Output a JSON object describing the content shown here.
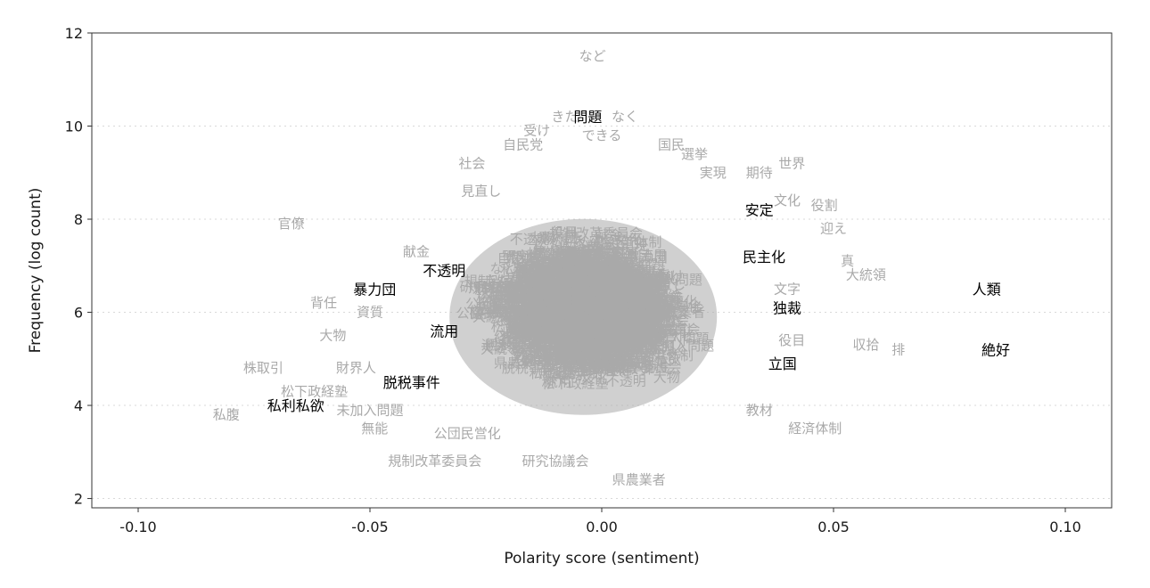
{
  "chart_data": {
    "type": "scatter",
    "xlabel": "Polarity score (sentiment)",
    "ylabel": "Frequency (log count)",
    "xlim": [
      -0.11,
      0.11
    ],
    "ylim": [
      1.8,
      12
    ],
    "xticks": [
      -0.1,
      -0.05,
      0.0,
      0.05,
      0.1
    ],
    "xtick_labels": [
      "-0.10",
      "-0.05",
      "0.00",
      "0.05",
      "0.10"
    ],
    "yticks": [
      2,
      4,
      6,
      8,
      10,
      12
    ],
    "ytick_labels": [
      "2",
      "4",
      "6",
      "8",
      "10",
      "12"
    ],
    "grid": "horizontal dotted",
    "colors": {
      "background_words": "#a9a9a9",
      "highlighted_words": "#000000",
      "grid": "#d9d9d9",
      "frame": "#333333"
    },
    "highlighted_words": [
      {
        "word": "問題",
        "x": -0.003,
        "y": 10.2
      },
      {
        "word": "安定",
        "x": 0.034,
        "y": 8.2
      },
      {
        "word": "民主化",
        "x": 0.035,
        "y": 7.2
      },
      {
        "word": "不透明",
        "x": -0.034,
        "y": 6.9
      },
      {
        "word": "暴力団",
        "x": -0.049,
        "y": 6.5
      },
      {
        "word": "人類",
        "x": 0.083,
        "y": 6.5
      },
      {
        "word": "独裁",
        "x": 0.04,
        "y": 6.1
      },
      {
        "word": "流用",
        "x": -0.034,
        "y": 5.6
      },
      {
        "word": "絶好",
        "x": 0.085,
        "y": 5.2
      },
      {
        "word": "立国",
        "x": 0.039,
        "y": 4.9
      },
      {
        "word": "脱税事件",
        "x": -0.041,
        "y": 4.5
      },
      {
        "word": "私利私欲",
        "x": -0.066,
        "y": 4.0
      }
    ],
    "background_words": [
      {
        "word": "など",
        "x": -0.002,
        "y": 11.5
      },
      {
        "word": "きた",
        "x": -0.008,
        "y": 10.2
      },
      {
        "word": "なく",
        "x": 0.005,
        "y": 10.2
      },
      {
        "word": "受け",
        "x": -0.014,
        "y": 9.9
      },
      {
        "word": "できる",
        "x": 0.0,
        "y": 9.8
      },
      {
        "word": "自民党",
        "x": -0.017,
        "y": 9.6
      },
      {
        "word": "国民",
        "x": 0.015,
        "y": 9.6
      },
      {
        "word": "選挙",
        "x": 0.02,
        "y": 9.4
      },
      {
        "word": "世界",
        "x": 0.041,
        "y": 9.2
      },
      {
        "word": "社会",
        "x": -0.028,
        "y": 9.2
      },
      {
        "word": "実現",
        "x": 0.024,
        "y": 9.0
      },
      {
        "word": "期待",
        "x": 0.034,
        "y": 9.0
      },
      {
        "word": "見直し",
        "x": -0.026,
        "y": 8.6
      },
      {
        "word": "文化",
        "x": 0.04,
        "y": 8.4
      },
      {
        "word": "役割",
        "x": 0.048,
        "y": 8.3
      },
      {
        "word": "官僚",
        "x": -0.067,
        "y": 7.9
      },
      {
        "word": "迎え",
        "x": 0.05,
        "y": 7.8
      },
      {
        "word": "献金",
        "x": -0.04,
        "y": 7.3
      },
      {
        "word": "真",
        "x": 0.053,
        "y": 7.1
      },
      {
        "word": "大統領",
        "x": 0.057,
        "y": 6.8
      },
      {
        "word": "文字",
        "x": 0.04,
        "y": 6.5
      },
      {
        "word": "背任",
        "x": -0.06,
        "y": 6.2
      },
      {
        "word": "資質",
        "x": -0.05,
        "y": 6.0
      },
      {
        "word": "大物",
        "x": -0.058,
        "y": 5.5
      },
      {
        "word": "役目",
        "x": 0.041,
        "y": 5.4
      },
      {
        "word": "収拾",
        "x": 0.057,
        "y": 5.3
      },
      {
        "word": "排",
        "x": 0.064,
        "y": 5.2
      },
      {
        "word": "株取引",
        "x": -0.073,
        "y": 4.8
      },
      {
        "word": "財界人",
        "x": -0.053,
        "y": 4.8
      },
      {
        "word": "松下政経塾",
        "x": -0.062,
        "y": 4.3
      },
      {
        "word": "私腹",
        "x": -0.081,
        "y": 3.8
      },
      {
        "word": "未加入問題",
        "x": -0.05,
        "y": 3.9
      },
      {
        "word": "教材",
        "x": 0.034,
        "y": 3.9
      },
      {
        "word": "無能",
        "x": -0.049,
        "y": 3.5
      },
      {
        "word": "公団民営化",
        "x": -0.029,
        "y": 3.4
      },
      {
        "word": "経済体制",
        "x": 0.046,
        "y": 3.5
      },
      {
        "word": "規制改革委員会",
        "x": -0.036,
        "y": 2.8
      },
      {
        "word": "研究協議会",
        "x": -0.01,
        "y": 2.8
      },
      {
        "word": "県農業者",
        "x": 0.008,
        "y": 2.4
      }
    ]
  }
}
